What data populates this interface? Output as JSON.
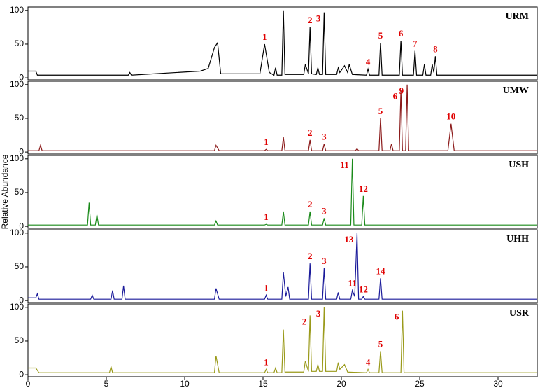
{
  "chart_data": [
    {
      "type": "line",
      "title": "URM",
      "color": "#000000",
      "xlim": [
        0,
        32.5
      ],
      "ylim": [
        -3,
        105
      ],
      "yticks": [
        0,
        50,
        100
      ],
      "x": [
        0,
        0.5,
        0.6,
        0.7,
        6.4,
        6.5,
        6.6,
        11.0,
        11.5,
        11.9,
        12.1,
        12.3,
        14.8,
        15.1,
        15.4,
        15.7,
        15.8,
        15.9,
        16.2,
        16.3,
        16.4,
        17.6,
        17.7,
        17.9,
        18.0,
        18.1,
        18.4,
        18.5,
        18.6,
        18.8,
        18.9,
        19.0,
        19.7,
        19.8,
        19.9,
        20.2,
        20.4,
        20.5,
        20.7,
        21.6,
        21.7,
        21.8,
        22.4,
        22.5,
        22.6,
        23.7,
        23.8,
        23.9,
        24.6,
        24.7,
        24.8,
        25.2,
        25.3,
        25.4,
        25.7,
        25.8,
        25.9,
        26.0,
        26.1,
        32.5
      ],
      "values": [
        10,
        10,
        4,
        4,
        4,
        8,
        4,
        10,
        14,
        45,
        52,
        6,
        6,
        50,
        8,
        4,
        15,
        4,
        4,
        100,
        5,
        5,
        20,
        6,
        75,
        6,
        5,
        15,
        5,
        5,
        97,
        5,
        5,
        15,
        8,
        18,
        8,
        20,
        5,
        4,
        13,
        4,
        4,
        52,
        4,
        4,
        55,
        4,
        4,
        40,
        4,
        4,
        20,
        4,
        4,
        20,
        8,
        32,
        4,
        4
      ],
      "peak_labels": [
        {
          "label": "1",
          "x": 15.1
        },
        {
          "label": "2",
          "x": 18.0
        },
        {
          "label": "3",
          "x": 18.9
        },
        {
          "label": "4",
          "x": 21.7
        },
        {
          "label": "5",
          "x": 22.5
        },
        {
          "label": "6",
          "x": 23.8
        },
        {
          "label": "7",
          "x": 24.7
        },
        {
          "label": "8",
          "x": 26.0
        }
      ]
    },
    {
      "type": "line",
      "title": "UMW",
      "color": "#8b1a1a",
      "xlim": [
        0,
        32.5
      ],
      "ylim": [
        -3,
        105
      ],
      "yticks": [
        0,
        50,
        100
      ],
      "x": [
        0,
        0.7,
        0.8,
        0.9,
        11.9,
        12.0,
        12.2,
        15.1,
        15.2,
        15.3,
        16.2,
        16.3,
        16.4,
        17.9,
        18.0,
        18.1,
        18.8,
        18.9,
        19.0,
        20.9,
        21.0,
        21.1,
        22.4,
        22.5,
        22.6,
        23.1,
        23.2,
        23.3,
        23.7,
        23.8,
        23.9,
        24.1,
        24.2,
        24.3,
        26.8,
        27.0,
        27.2,
        32.5
      ],
      "values": [
        2,
        2,
        10,
        2,
        2,
        10,
        2,
        2,
        4,
        2,
        2,
        22,
        2,
        2,
        18,
        2,
        2,
        12,
        2,
        2,
        5,
        2,
        2,
        50,
        2,
        2,
        12,
        2,
        2,
        92,
        2,
        2,
        100,
        2,
        2,
        42,
        2,
        2
      ],
      "peak_labels": [
        {
          "label": "1",
          "x": 15.2
        },
        {
          "label": "2",
          "x": 18.0
        },
        {
          "label": "3",
          "x": 18.9
        },
        {
          "label": "5",
          "x": 22.5
        },
        {
          "label": "6",
          "x": 23.8
        },
        {
          "label": "9",
          "x": 24.2
        },
        {
          "label": "10",
          "x": 27.0
        }
      ]
    },
    {
      "type": "line",
      "title": "USH",
      "color": "#1a8a1a",
      "xlim": [
        0,
        32.5
      ],
      "ylim": [
        -3,
        105
      ],
      "yticks": [
        0,
        50,
        100
      ],
      "ylabel": "Relative Abundance",
      "x": [
        0,
        3.8,
        3.9,
        4.0,
        4.3,
        4.4,
        4.5,
        11.9,
        12.0,
        12.1,
        15.1,
        15.2,
        15.3,
        16.2,
        16.3,
        16.4,
        17.9,
        18.0,
        18.1,
        18.8,
        18.9,
        19.0,
        20.6,
        20.7,
        20.8,
        21.3,
        21.4,
        21.5,
        32.5
      ],
      "values": [
        2,
        2,
        35,
        2,
        2,
        17,
        2,
        2,
        8,
        2,
        2,
        3,
        2,
        2,
        22,
        2,
        2,
        22,
        2,
        2,
        12,
        2,
        2,
        100,
        2,
        2,
        45,
        2,
        2
      ],
      "peak_labels": [
        {
          "label": "1",
          "x": 15.2
        },
        {
          "label": "2",
          "x": 18.0
        },
        {
          "label": "3",
          "x": 18.9
        },
        {
          "label": "11",
          "x": 20.7
        },
        {
          "label": "12",
          "x": 21.4
        }
      ]
    },
    {
      "type": "line",
      "title": "UHH",
      "color": "#1a1a9a",
      "xlim": [
        0,
        32.5
      ],
      "ylim": [
        -3,
        105
      ],
      "yticks": [
        0,
        50,
        100
      ],
      "x": [
        0,
        0.5,
        0.6,
        0.7,
        4.0,
        4.1,
        4.2,
        5.3,
        5.4,
        5.5,
        6.0,
        6.1,
        6.2,
        11.9,
        12.0,
        12.2,
        15.1,
        15.2,
        15.3,
        16.2,
        16.3,
        16.45,
        16.6,
        16.7,
        17.9,
        18.0,
        18.1,
        18.8,
        18.9,
        19.0,
        19.7,
        19.8,
        19.9,
        20.6,
        20.7,
        20.85,
        21.0,
        21.1,
        21.3,
        21.4,
        21.5,
        22.4,
        22.5,
        22.6,
        32.5
      ],
      "values": [
        4,
        4,
        10,
        2,
        2,
        8,
        2,
        2,
        15,
        2,
        2,
        22,
        2,
        2,
        18,
        2,
        2,
        8,
        2,
        2,
        42,
        6,
        20,
        2,
        2,
        55,
        2,
        2,
        48,
        2,
        2,
        12,
        2,
        2,
        15,
        6,
        100,
        2,
        2,
        6,
        2,
        2,
        33,
        2,
        2
      ],
      "peak_labels": [
        {
          "label": "1",
          "x": 15.2
        },
        {
          "label": "2",
          "x": 18.0
        },
        {
          "label": "3",
          "x": 18.9
        },
        {
          "label": "11",
          "x": 20.7
        },
        {
          "label": "13",
          "x": 21.0
        },
        {
          "label": "12",
          "x": 21.4
        },
        {
          "label": "14",
          "x": 22.5
        }
      ]
    },
    {
      "type": "line",
      "title": "USR",
      "color": "#9a9a1a",
      "xlim": [
        0,
        32.5
      ],
      "ylim": [
        -3,
        105
      ],
      "yticks": [
        0,
        50,
        100
      ],
      "xticks": [
        0,
        5,
        10,
        15,
        20,
        25,
        30
      ],
      "x": [
        0,
        0.5,
        0.7,
        5.2,
        5.3,
        5.4,
        11.9,
        12.0,
        12.2,
        15.1,
        15.2,
        15.3,
        15.7,
        15.8,
        15.9,
        16.2,
        16.3,
        16.4,
        17.6,
        17.7,
        17.9,
        18.0,
        18.1,
        18.4,
        18.5,
        18.6,
        18.8,
        18.9,
        19.0,
        19.7,
        19.8,
        19.9,
        20.2,
        20.4,
        21.6,
        21.7,
        21.8,
        22.4,
        22.5,
        22.6,
        23.8,
        23.9,
        24.0,
        32.5
      ],
      "values": [
        10,
        10,
        3,
        3,
        12,
        3,
        3,
        28,
        3,
        3,
        8,
        3,
        3,
        10,
        3,
        3,
        67,
        4,
        4,
        20,
        5,
        88,
        5,
        5,
        15,
        5,
        5,
        100,
        5,
        5,
        18,
        8,
        15,
        4,
        3,
        8,
        3,
        3,
        35,
        3,
        3,
        95,
        3,
        3
      ],
      "peak_labels": [
        {
          "label": "1",
          "x": 15.2
        },
        {
          "label": "2",
          "x": 18.0
        },
        {
          "label": "3",
          "x": 18.9
        },
        {
          "label": "4",
          "x": 21.7
        },
        {
          "label": "5",
          "x": 22.5
        },
        {
          "label": "6",
          "x": 23.9
        }
      ]
    }
  ]
}
